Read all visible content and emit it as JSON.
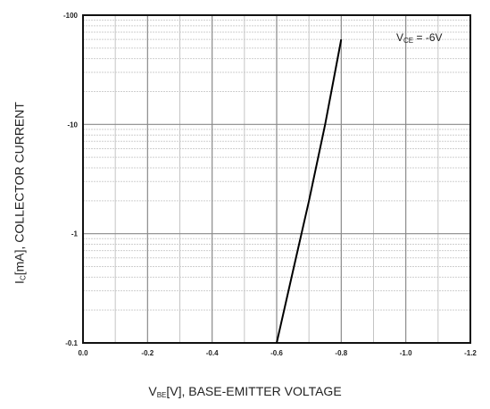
{
  "chart_data": {
    "type": "line",
    "x_axis": {
      "label_main": "V",
      "label_sub": "BE",
      "label_rest": "[V], BASE-EMITTER VOLTAGE",
      "ticks": [
        0.0,
        -0.2,
        -0.4,
        -0.6,
        -0.8,
        -1.0,
        -1.2
      ],
      "tick_labels": [
        "0.0",
        "-0.2",
        "-0.4",
        "-0.6",
        "-0.8",
        "-1.0",
        "-1.2"
      ],
      "range": [
        0.0,
        -1.2
      ]
    },
    "y_axis": {
      "label_main": "I",
      "label_sub": "C",
      "label_rest": "[mA], COLLECTOR CURRENT",
      "scale": "log",
      "ticks": [
        -0.1,
        -1,
        -10,
        -100
      ],
      "tick_labels": [
        "-0.1",
        "-1",
        "-10",
        "-100"
      ],
      "range": [
        -0.1,
        -100
      ]
    },
    "annotation": {
      "main": "V",
      "sub": "CE",
      "rest": " = -6V"
    },
    "grid": true,
    "series": [
      {
        "x": [
          -0.6,
          -0.65,
          -0.7,
          -0.75,
          -0.8
        ],
        "y": [
          -0.1,
          -0.45,
          -2.0,
          -10.0,
          -60.0
        ]
      }
    ]
  }
}
